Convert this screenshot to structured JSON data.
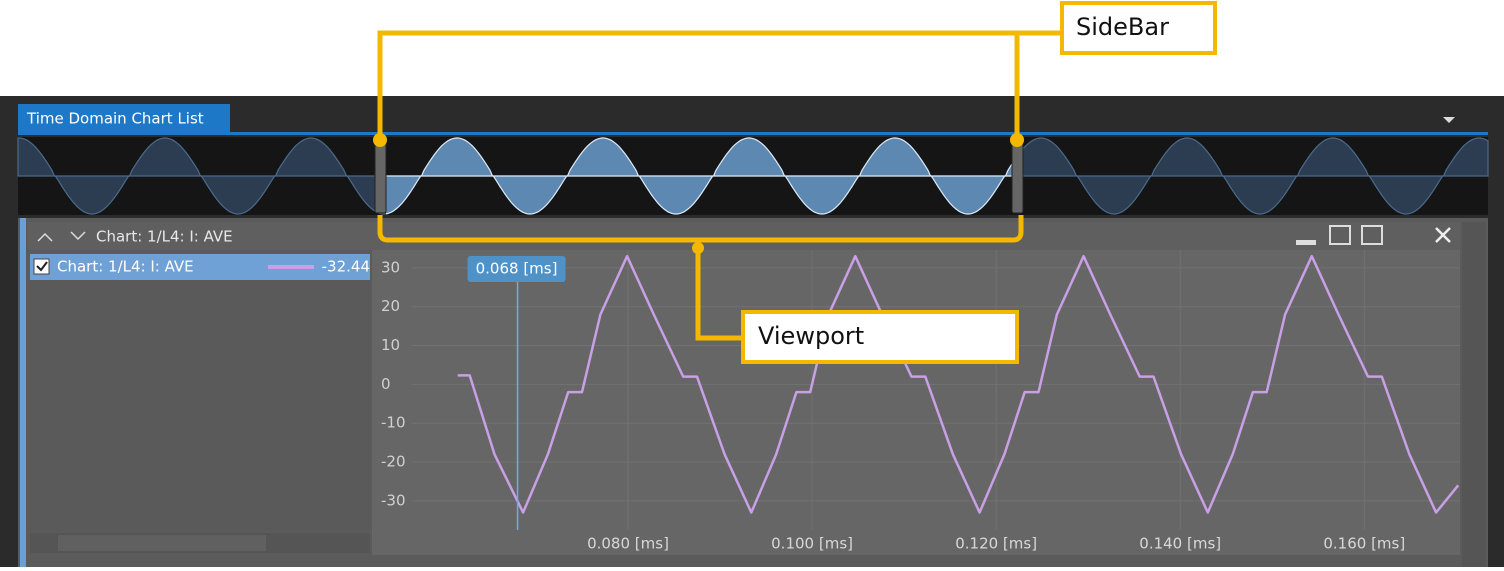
{
  "annotations": {
    "sidebar": "SideBar",
    "viewport": "Viewport"
  },
  "panel": {
    "tab": "Time Domain Chart List"
  },
  "chart_data": {
    "type": "line",
    "title": "Chart: 1/L4: I: AVE",
    "x": [
      0.0615,
      0.0628,
      0.0655,
      0.0686,
      0.0713,
      0.0735,
      0.075,
      0.077,
      0.0799,
      0.0828,
      0.086,
      0.0875,
      0.0905,
      0.0934,
      0.0961,
      0.0983,
      0.0998,
      0.1018,
      0.1047,
      0.1076,
      0.1108,
      0.1123,
      0.1153,
      0.1182,
      0.1209,
      0.1231,
      0.1246,
      0.1266,
      0.1295,
      0.1324,
      0.1356,
      0.1371,
      0.1401,
      0.143,
      0.1457,
      0.1479,
      0.1494,
      0.1514,
      0.1543,
      0.1572,
      0.1604,
      0.1619,
      0.1649,
      0.1678,
      0.1702
    ],
    "series": [
      {
        "name": "Chart: 1/L4: I: AVE",
        "color": "#c9a0e6",
        "values": [
          2.3,
          2.3,
          -18,
          -33,
          -18,
          -2,
          -2,
          18,
          33,
          18,
          2,
          2,
          -18,
          -33,
          -18,
          -2,
          -2,
          18,
          33,
          18,
          2,
          2,
          -18,
          -33,
          -18,
          -2,
          -2,
          18,
          33,
          18,
          2,
          2,
          -18,
          -33,
          -18,
          -2,
          -2,
          18,
          33,
          18,
          2,
          2,
          -18,
          -33,
          -26
        ]
      }
    ],
    "legend_value": -32.44,
    "xlim": [
      0.0574,
      0.1704
    ],
    "ylim": [
      -37.5,
      34.6
    ],
    "xticks": [
      {
        "value": 0.08,
        "label": "0.080 [ms]"
      },
      {
        "value": 0.1,
        "label": "0.100 [ms]"
      },
      {
        "value": 0.12,
        "label": "0.120 [ms]"
      },
      {
        "value": 0.14,
        "label": "0.140 [ms]"
      },
      {
        "value": 0.16,
        "label": "0.160 [ms]"
      }
    ],
    "yticks": [
      30,
      20,
      10,
      0,
      -10,
      -20,
      -30
    ],
    "grid": true,
    "cursor": {
      "value": 0.068,
      "label": "0.068 [ms]"
    }
  }
}
